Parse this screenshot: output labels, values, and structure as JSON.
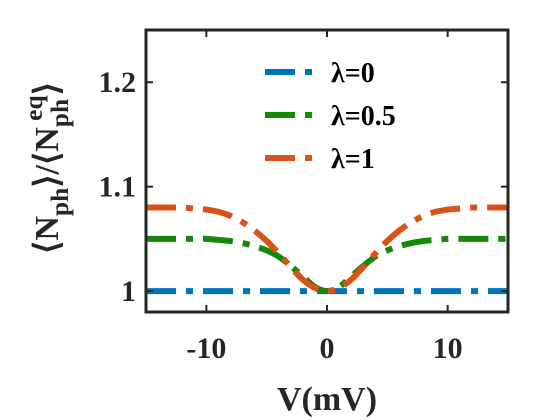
{
  "chart_data": {
    "type": "line",
    "x": [
      -15,
      -14,
      -13,
      -12,
      -11,
      -10,
      -9,
      -8,
      -7,
      -6,
      -5,
      -4,
      -3,
      -2,
      -1,
      0,
      1,
      2,
      3,
      4,
      5,
      6,
      7,
      8,
      9,
      10,
      11,
      12,
      13,
      14,
      15
    ],
    "series": [
      {
        "name": "λ=0",
        "color": "#0072BD",
        "values": [
          1,
          1,
          1,
          1,
          1,
          1,
          1,
          1,
          1,
          1,
          1,
          1,
          1,
          1,
          1,
          1,
          1,
          1,
          1,
          1,
          1,
          1,
          1,
          1,
          1,
          1,
          1,
          1,
          1,
          1,
          1
        ]
      },
      {
        "name": "λ=0.5",
        "color": "#138A07",
        "values": [
          1.05,
          1.05,
          1.05,
          1.05,
          1.05,
          1.05,
          1.049,
          1.048,
          1.046,
          1.043,
          1.039,
          1.033,
          1.024,
          1.014,
          1.004,
          1.0,
          1.004,
          1.014,
          1.024,
          1.033,
          1.039,
          1.043,
          1.046,
          1.048,
          1.049,
          1.05,
          1.05,
          1.05,
          1.05,
          1.05,
          1.05
        ]
      },
      {
        "name": "λ=1",
        "color": "#D95319",
        "values": [
          1.08,
          1.08,
          1.08,
          1.08,
          1.079,
          1.078,
          1.076,
          1.072,
          1.066,
          1.058,
          1.048,
          1.036,
          1.023,
          1.011,
          1.003,
          1.0,
          1.003,
          1.011,
          1.023,
          1.036,
          1.048,
          1.058,
          1.066,
          1.072,
          1.076,
          1.078,
          1.079,
          1.08,
          1.08,
          1.08,
          1.08
        ]
      }
    ],
    "xlabel": "V(mV)",
    "ylabel": "⟨N_ph⟩/⟨N_ph^eq⟩",
    "xlim": [
      -15,
      15
    ],
    "ylim": [
      0.98,
      1.25
    ],
    "xticks": [
      -10,
      0,
      10
    ],
    "xtick_labels": [
      "-10",
      "0",
      "10"
    ],
    "yticks": [
      1,
      1.1,
      1.2
    ],
    "ytick_labels": [
      "1",
      "1.1",
      "1.2"
    ],
    "line_style": "dash-dot",
    "grid": false,
    "legend_position": "top-right"
  }
}
